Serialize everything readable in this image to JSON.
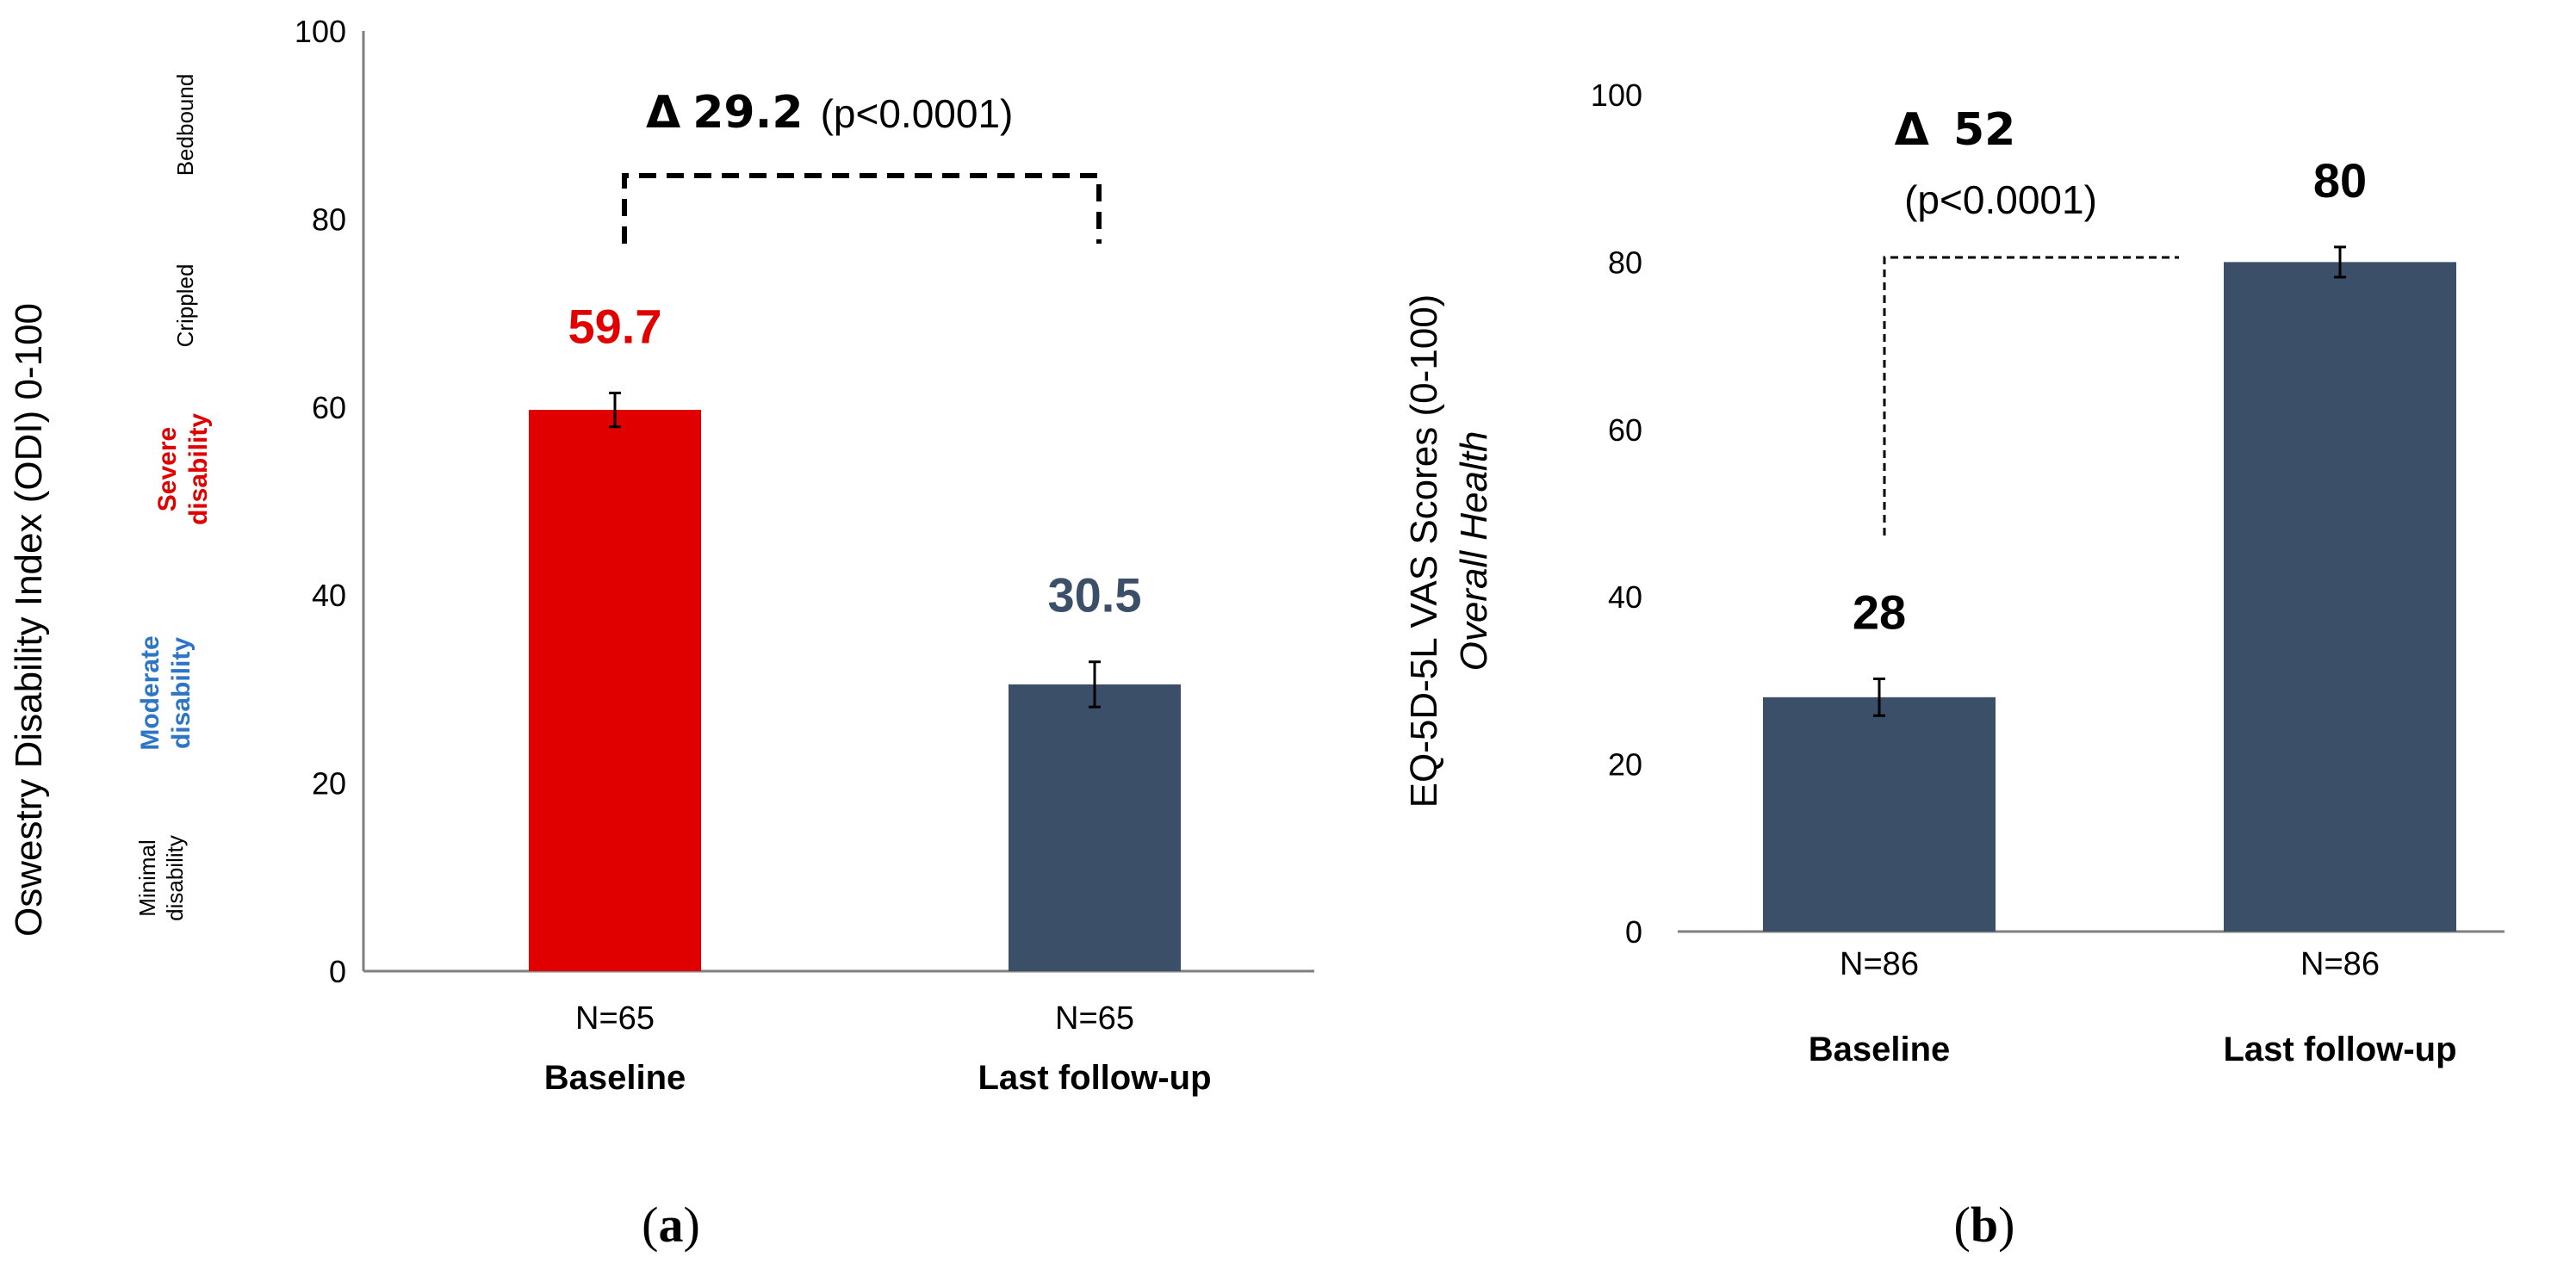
{
  "chart_data": [
    {
      "type": "bar",
      "panel": "a",
      "categories": [
        "Baseline",
        "Last follow-up"
      ],
      "n_labels": [
        "N=65",
        "N=65"
      ],
      "values": [
        59.7,
        30.5
      ],
      "value_labels": [
        "59.7",
        "30.5"
      ],
      "errors": [
        1.8,
        2.4
      ],
      "bar_colors": [
        "#e00000",
        "#3b5068"
      ],
      "ylabel": "Oswestry Disability Index (ODI) 0-100",
      "ylim": [
        0,
        100
      ],
      "yticks": [
        0,
        20,
        40,
        60,
        80,
        100
      ],
      "annotation": {
        "delta_symbol": "Δ",
        "delta": "29.2",
        "p": "(p<0.0001)"
      },
      "severity_bands": [
        {
          "text": "Bedbound",
          "color": "#000000",
          "bold": false
        },
        {
          "text": "Crippled",
          "color": "#000000",
          "bold": false
        },
        {
          "line1": "Severe",
          "line2": "disability",
          "color": "#e00000",
          "bold": true
        },
        {
          "line1": "Moderate",
          "line2": "disability",
          "color": "#2e75c6",
          "bold": true
        },
        {
          "line1": "Minimal",
          "line2": "disability",
          "color": "#000000",
          "bold": false
        }
      ]
    },
    {
      "type": "bar",
      "panel": "b",
      "categories": [
        "Baseline",
        "Last follow-up"
      ],
      "n_labels": [
        "N=86",
        "N=86"
      ],
      "values": [
        28,
        80
      ],
      "value_labels": [
        "28",
        "80"
      ],
      "errors": [
        2.2,
        1.8
      ],
      "bar_colors": [
        "#3b5068",
        "#3b5068"
      ],
      "ylabel": "EQ-5D-5L VAS Scores (0-100)",
      "ylabel2": "Overall Health",
      "ylim": [
        0,
        100
      ],
      "yticks": [
        0,
        20,
        40,
        60,
        80,
        100
      ],
      "annotation": {
        "delta_symbol": "Δ",
        "delta": "52",
        "p": "(p<0.0001)"
      }
    }
  ],
  "panel_labels": {
    "a": "a",
    "b": "b"
  }
}
